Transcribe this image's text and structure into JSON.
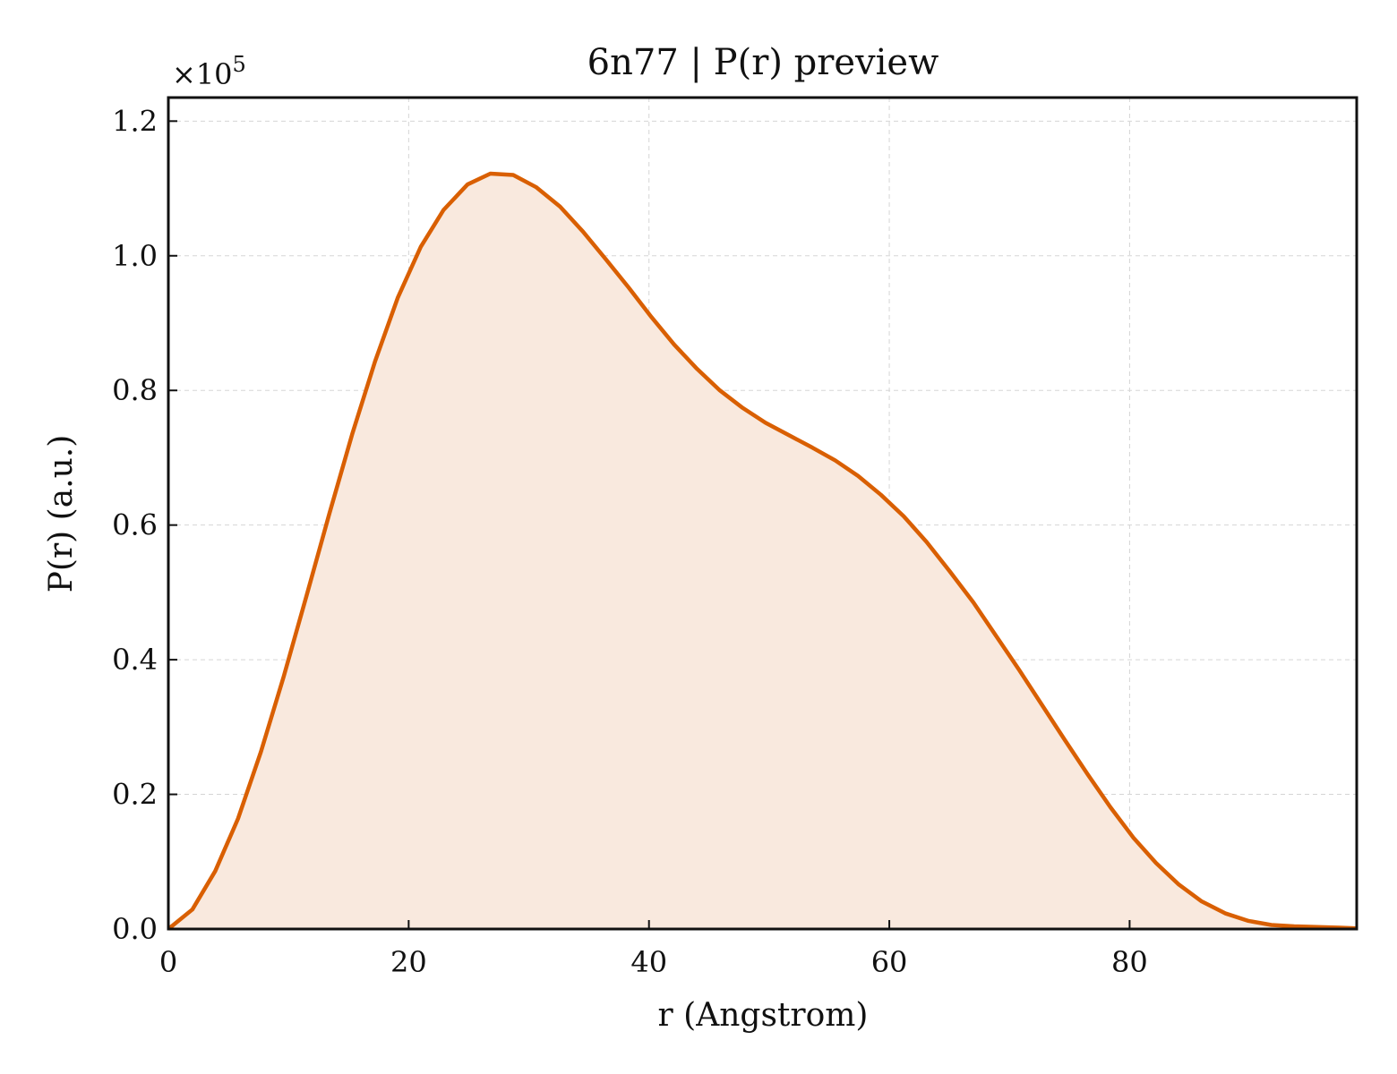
{
  "chart_data": {
    "type": "area",
    "title": "6n77 | P(r) preview",
    "xlabel": "r (Angstrom)",
    "ylabel": "P(r) (a.u.)",
    "y_scale_label": "×10",
    "y_scale_exponent": "5",
    "xlim": [
      0,
      98.9
    ],
    "ylim": [
      0,
      1.235
    ],
    "xticks": [
      "0",
      "20",
      "40",
      "60",
      "80"
    ],
    "xtick_values": [
      0,
      20,
      40,
      60,
      80
    ],
    "yticks": [
      "0.0",
      "0.2",
      "0.4",
      "0.6",
      "0.8",
      "1.0",
      "1.2"
    ],
    "ytick_values": [
      0,
      0.2,
      0.4,
      0.6,
      0.8,
      1.0,
      1.2
    ],
    "grid": true,
    "line_color": "#d95f02",
    "fill_color": "#f9e9de",
    "series": [
      {
        "x": [
          0,
          2,
          3.9,
          5.8,
          7.7,
          9.6,
          11.5,
          13.4,
          15.3,
          17.2,
          19.1,
          21.0,
          22.9,
          24.9,
          26.8,
          28.7,
          30.6,
          32.6,
          34.5,
          36.4,
          38.3,
          40.2,
          42.1,
          44.0,
          45.9,
          47.8,
          49.7,
          51.7,
          53.6,
          55.5,
          57.4,
          59.3,
          61.2,
          63.1,
          65.0,
          67.0,
          68.9,
          70.8,
          72.7,
          74.6,
          76.5,
          78.4,
          80.3,
          82.2,
          84.1,
          86.0,
          88.0,
          89.9,
          91.8,
          93.7,
          95.6,
          97.5,
          98.9
        ],
        "values": [
          0,
          0.029,
          0.086,
          0.164,
          0.263,
          0.375,
          0.495,
          0.617,
          0.735,
          0.843,
          0.938,
          1.013,
          1.068,
          1.106,
          1.122,
          1.12,
          1.102,
          1.073,
          1.036,
          0.995,
          0.953,
          0.909,
          0.868,
          0.832,
          0.8,
          0.774,
          0.752,
          0.733,
          0.715,
          0.696,
          0.673,
          0.645,
          0.613,
          0.575,
          0.532,
          0.485,
          0.435,
          0.385,
          0.333,
          0.281,
          0.23,
          0.181,
          0.136,
          0.098,
          0.066,
          0.041,
          0.023,
          0.012,
          0.006,
          0.004,
          0.003,
          0.002,
          0.001
        ]
      }
    ]
  }
}
